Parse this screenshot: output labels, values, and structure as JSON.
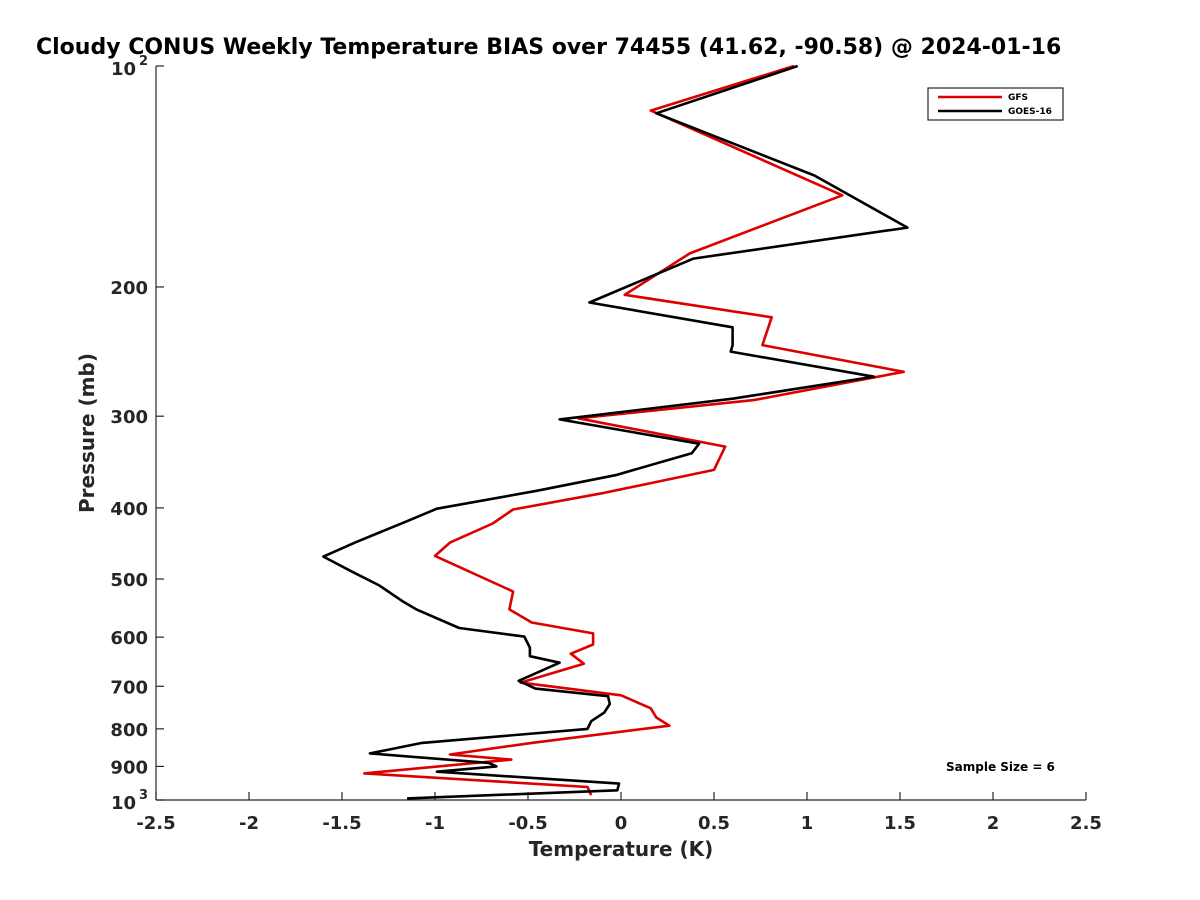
{
  "chart_data": {
    "type": "line",
    "title": "Cloudy CONUS Weekly Temperature BIAS over 74455 (41.62, -90.58) @ 2024-01-16",
    "xlabel": "Temperature (K)",
    "ylabel": "Pressure (mb)",
    "xlim": [
      -2.5,
      2.5
    ],
    "ylim": [
      1000,
      100
    ],
    "y_scale": "log",
    "y_reversed": true,
    "grid": false,
    "legend_position": "top-right",
    "x_ticks": [
      "-2.5",
      "-2",
      "-1.5",
      "-1",
      "-0.5",
      "0",
      "0.5",
      "1",
      "1.5",
      "2",
      "2.5"
    ],
    "x_tick_values": [
      -2.5,
      -2,
      -1.5,
      -1,
      -0.5,
      0,
      0.5,
      1,
      1.5,
      2,
      2.5
    ],
    "y_ticks": [
      {
        "value": 100,
        "base": "10",
        "exp": "2"
      },
      {
        "value": 200,
        "label": "200"
      },
      {
        "value": 300,
        "label": "300"
      },
      {
        "value": 400,
        "label": "400"
      },
      {
        "value": 500,
        "label": "500"
      },
      {
        "value": 600,
        "label": "600"
      },
      {
        "value": 700,
        "label": "700"
      },
      {
        "value": 800,
        "label": "800"
      },
      {
        "value": 900,
        "label": "900"
      },
      {
        "value": 1000,
        "base": "10",
        "exp": "3"
      }
    ],
    "annotation": "Sample Size = 6",
    "series": [
      {
        "name": "GFS",
        "color": "#dd0000",
        "points": [
          [
            0.93,
            100
          ],
          [
            0.16,
            115
          ],
          [
            1.19,
            150
          ],
          [
            0.37,
            180
          ],
          [
            0.02,
            205
          ],
          [
            0.81,
            220
          ],
          [
            0.76,
            240
          ],
          [
            1.52,
            261
          ],
          [
            0.72,
            285
          ],
          [
            -0.23,
            302
          ],
          [
            0.56,
            330
          ],
          [
            0.5,
            355
          ],
          [
            -0.1,
            382
          ],
          [
            -0.58,
            402
          ],
          [
            -0.69,
            420
          ],
          [
            -0.92,
            446
          ],
          [
            -1.0,
            465
          ],
          [
            -0.58,
            520
          ],
          [
            -0.6,
            550
          ],
          [
            -0.48,
            573
          ],
          [
            -0.15,
            593
          ],
          [
            -0.15,
            614
          ],
          [
            -0.27,
            632
          ],
          [
            -0.2,
            652
          ],
          [
            -0.54,
            692
          ],
          [
            0.0,
            720
          ],
          [
            0.16,
            750
          ],
          [
            0.19,
            772
          ],
          [
            0.26,
            792
          ],
          [
            -0.48,
            836
          ],
          [
            -0.92,
            867
          ],
          [
            -0.59,
            881
          ],
          [
            -1.38,
            920
          ],
          [
            -0.18,
            960
          ],
          [
            -0.16,
            985
          ]
        ]
      },
      {
        "name": "GOES-16",
        "color": "#000000",
        "points": [
          [
            0.95,
            100
          ],
          [
            0.19,
            116
          ],
          [
            1.04,
            141
          ],
          [
            1.54,
            166
          ],
          [
            0.39,
            183
          ],
          [
            -0.17,
            210
          ],
          [
            0.6,
            227
          ],
          [
            0.6,
            240
          ],
          [
            0.59,
            245
          ],
          [
            1.36,
            265
          ],
          [
            0.6,
            284
          ],
          [
            -0.33,
            303
          ],
          [
            0.42,
            327
          ],
          [
            0.38,
            337
          ],
          [
            -0.03,
            361
          ],
          [
            -0.45,
            379
          ],
          [
            -0.99,
            401
          ],
          [
            -1.16,
            418
          ],
          [
            -1.43,
            446
          ],
          [
            -1.6,
            466
          ],
          [
            -1.45,
            488
          ],
          [
            -1.3,
            510
          ],
          [
            -1.17,
            537
          ],
          [
            -1.1,
            550
          ],
          [
            -0.87,
            583
          ],
          [
            -0.52,
            599
          ],
          [
            -0.49,
            620
          ],
          [
            -0.49,
            637
          ],
          [
            -0.33,
            650
          ],
          [
            -0.55,
            688
          ],
          [
            -0.46,
            705
          ],
          [
            -0.07,
            722
          ],
          [
            -0.06,
            740
          ],
          [
            -0.09,
            760
          ],
          [
            -0.16,
            781
          ],
          [
            -0.18,
            800
          ],
          [
            -1.07,
            836
          ],
          [
            -1.35,
            864
          ],
          [
            -0.71,
            890
          ],
          [
            -0.67,
            900
          ],
          [
            -0.99,
            915
          ],
          [
            -0.01,
            950
          ],
          [
            -0.02,
            970
          ],
          [
            -1.15,
            995
          ]
        ]
      }
    ]
  }
}
